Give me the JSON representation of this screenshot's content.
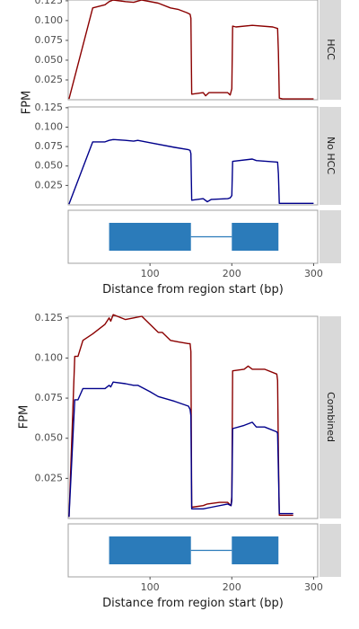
{
  "colors": {
    "hcc": "#8b0000",
    "no_hcc": "#00008b",
    "exon": "#2b7bba",
    "intron": "#2b7bba",
    "strip_bg": "#d9d9d9"
  },
  "chart_data": [
    {
      "type": "line",
      "facet": "HCC",
      "ylabel": "FPM",
      "xlim": [
        0,
        305
      ],
      "ylim": [
        0,
        0.126
      ],
      "yticks": [
        "0.025",
        "0.050",
        "0.075",
        "0.100",
        "0.125"
      ],
      "series": [
        {
          "color": "#8b0000",
          "x": [
            1,
            30,
            45,
            50,
            55,
            70,
            80,
            90,
            110,
            125,
            135,
            145,
            149,
            150,
            151,
            165,
            168,
            172,
            185,
            195,
            198,
            200,
            201,
            205,
            225,
            250,
            256,
            257,
            258,
            262,
            300
          ],
          "y": [
            0.001,
            0.116,
            0.12,
            0.124,
            0.126,
            0.124,
            0.123,
            0.126,
            0.122,
            0.116,
            0.114,
            0.11,
            0.108,
            0.103,
            0.007,
            0.009,
            0.005,
            0.009,
            0.009,
            0.009,
            0.006,
            0.014,
            0.093,
            0.092,
            0.094,
            0.092,
            0.09,
            0.06,
            0.002,
            0.001,
            0.001
          ]
        }
      ]
    },
    {
      "type": "line",
      "facet": "No HCC",
      "ylabel": "FPM",
      "xlim": [
        0,
        305
      ],
      "ylim": [
        0,
        0.126
      ],
      "yticks": [
        "0.025",
        "0.050",
        "0.075",
        "0.100",
        "0.125"
      ],
      "series": [
        {
          "color": "#00008b",
          "x": [
            1,
            30,
            45,
            50,
            55,
            70,
            80,
            85,
            100,
            130,
            147,
            149,
            150,
            151,
            165,
            170,
            175,
            195,
            198,
            200,
            201,
            225,
            230,
            256,
            257,
            258,
            262,
            300
          ],
          "y": [
            0.001,
            0.081,
            0.081,
            0.083,
            0.084,
            0.083,
            0.082,
            0.083,
            0.08,
            0.074,
            0.071,
            0.07,
            0.066,
            0.006,
            0.008,
            0.004,
            0.007,
            0.008,
            0.009,
            0.012,
            0.056,
            0.059,
            0.057,
            0.055,
            0.04,
            0.002,
            0.002,
            0.002
          ]
        }
      ]
    },
    {
      "type": "line",
      "facet": "Combined",
      "ylabel": "FPM",
      "xlim": [
        0,
        305
      ],
      "ylim": [
        0,
        0.126
      ],
      "yticks": [
        "0.025",
        "0.050",
        "0.075",
        "0.100",
        "0.125"
      ],
      "series": [
        {
          "color": "#8b0000",
          "x": [
            1,
            8,
            12,
            18,
            30,
            45,
            50,
            52,
            55,
            70,
            80,
            90,
            110,
            115,
            125,
            135,
            147,
            149,
            150,
            151,
            165,
            170,
            185,
            195,
            199,
            200,
            201,
            215,
            220,
            225,
            240,
            255,
            256,
            257,
            258,
            275
          ],
          "y": [
            0.001,
            0.101,
            0.101,
            0.111,
            0.115,
            0.121,
            0.125,
            0.123,
            0.127,
            0.124,
            0.125,
            0.126,
            0.116,
            0.116,
            0.111,
            0.11,
            0.109,
            0.109,
            0.104,
            0.007,
            0.008,
            0.009,
            0.01,
            0.01,
            0.008,
            0.014,
            0.092,
            0.093,
            0.095,
            0.093,
            0.093,
            0.09,
            0.086,
            0.04,
            0.002,
            0.002
          ]
        },
        {
          "color": "#00008b",
          "x": [
            1,
            8,
            12,
            18,
            30,
            45,
            50,
            52,
            55,
            70,
            80,
            85,
            100,
            110,
            130,
            147,
            149,
            150,
            151,
            165,
            175,
            195,
            199,
            200,
            201,
            215,
            225,
            230,
            240,
            255,
            256,
            257,
            258,
            275
          ],
          "y": [
            0.001,
            0.074,
            0.074,
            0.081,
            0.081,
            0.081,
            0.083,
            0.082,
            0.085,
            0.084,
            0.083,
            0.083,
            0.079,
            0.076,
            0.073,
            0.07,
            0.068,
            0.064,
            0.006,
            0.006,
            0.007,
            0.009,
            0.008,
            0.011,
            0.056,
            0.058,
            0.06,
            0.057,
            0.057,
            0.054,
            0.053,
            0.03,
            0.003,
            0.003
          ]
        }
      ]
    }
  ],
  "gene_model": {
    "exons": [
      [
        50,
        150
      ],
      [
        200,
        257
      ]
    ],
    "intron": [
      150,
      200
    ],
    "xticks": [
      100,
      200,
      300
    ],
    "xlabel": "Distance from region start (bp)"
  },
  "facet_labels": {
    "hcc": "HCC",
    "no_hcc": "No HCC",
    "combined": "Combined"
  },
  "ylabel": "FPM",
  "xlabel": "Distance from region start (bp)"
}
